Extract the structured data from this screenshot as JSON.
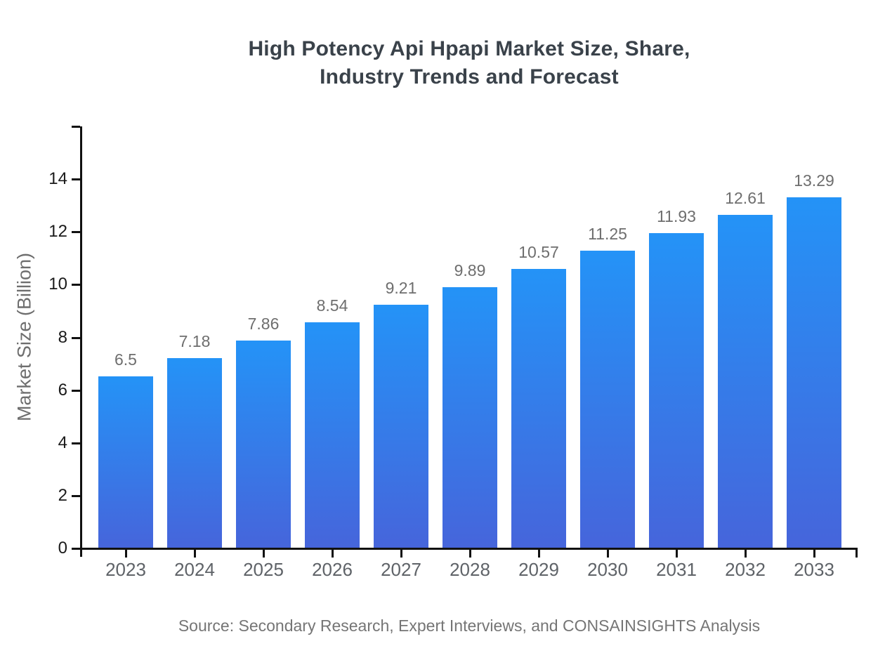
{
  "header": {
    "title_line1": "High Potency Api Hpapi Market Size, Share,",
    "title_line2": "Industry Trends and Forecast"
  },
  "chart_data": {
    "type": "bar",
    "title": "High Potency Api Hpapi Market Size, Share, Industry Trends and Forecast",
    "categories": [
      "2023",
      "2024",
      "2025",
      "2026",
      "2027",
      "2028",
      "2029",
      "2030",
      "2031",
      "2032",
      "2033"
    ],
    "values": [
      6.5,
      7.18,
      7.86,
      8.54,
      9.21,
      9.89,
      10.57,
      11.25,
      11.93,
      12.61,
      13.29
    ],
    "value_labels": [
      "6.5",
      "7.18",
      "7.86",
      "8.54",
      "9.21",
      "9.89",
      "10.57",
      "11.25",
      "11.93",
      "12.61",
      "13.29"
    ],
    "xlabel": "",
    "ylabel": "Market Size (Billion)",
    "ylim": [
      0,
      16
    ],
    "yticks": [
      0,
      2,
      4,
      6,
      8,
      10,
      12,
      14
    ],
    "grid": false,
    "legend": "none",
    "bar_color_top": "#2493f7",
    "bar_color_bottom": "#4665db",
    "axis_color": "#111111"
  },
  "footer": {
    "source": "Source: Secondary Research, Expert Interviews, and CONSAINSIGHTS Analysis"
  }
}
